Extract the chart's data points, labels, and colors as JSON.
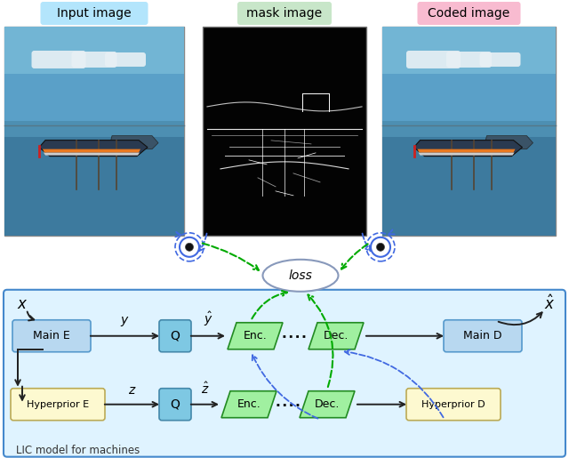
{
  "bg_color": "#ffffff",
  "input_label": "Input image",
  "mask_label": "mask image",
  "coded_label": "Coded image",
  "lic_label": "LIC model for machines",
  "label_bg_input": "#b3e5fc",
  "label_bg_mask": "#c8e6c9",
  "label_bg_coded": "#f8bbd0",
  "main_box_color": "#b8d8f0",
  "main_box_edge": "#5599cc",
  "yellow_box_color": "#fdf9d0",
  "yellow_box_edge": "#bbaa55",
  "q_box_color": "#7ec8e3",
  "q_box_edge": "#4488aa",
  "enc_dec_color": "#a0f0a0",
  "enc_dec_edge": "#228B22",
  "lic_bg_color": "#dff3ff",
  "lic_bg_edge": "#4488cc",
  "loss_face": "#ffffff",
  "loss_edge": "#8899bb",
  "arrow_color": "#222222",
  "green_arrow": "#00aa00",
  "blue_arrow": "#4169e1",
  "eye_color": "#4169e1"
}
